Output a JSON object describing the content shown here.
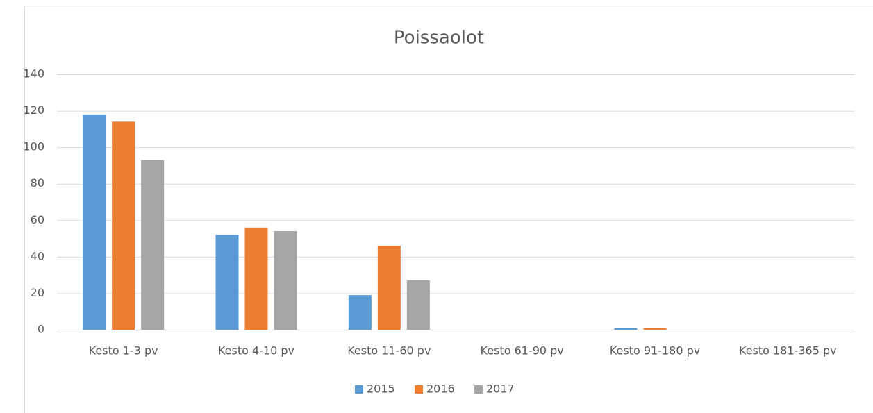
{
  "chart_data": {
    "type": "bar",
    "title": "Poissaolot",
    "categories": [
      "Kesto 1-3 pv",
      "Kesto 4-10 pv",
      "Kesto 11-60 pv",
      "Kesto 61-90 pv",
      "Kesto 91-180 pv",
      "Kesto 181-365 pv"
    ],
    "series": [
      {
        "name": "2015",
        "color": "#5b9bd5",
        "values": [
          118,
          52,
          19,
          0,
          1,
          0
        ]
      },
      {
        "name": "2016",
        "color": "#ed7d31",
        "values": [
          114,
          56,
          46,
          0,
          1,
          0
        ]
      },
      {
        "name": "2017",
        "color": "#a5a5a5",
        "values": [
          93,
          54,
          27,
          0,
          0,
          0
        ]
      }
    ],
    "ylim": [
      0,
      140
    ],
    "yticks": [
      0,
      20,
      40,
      60,
      80,
      100,
      120,
      140
    ],
    "grid": true,
    "legend": "bottom"
  }
}
